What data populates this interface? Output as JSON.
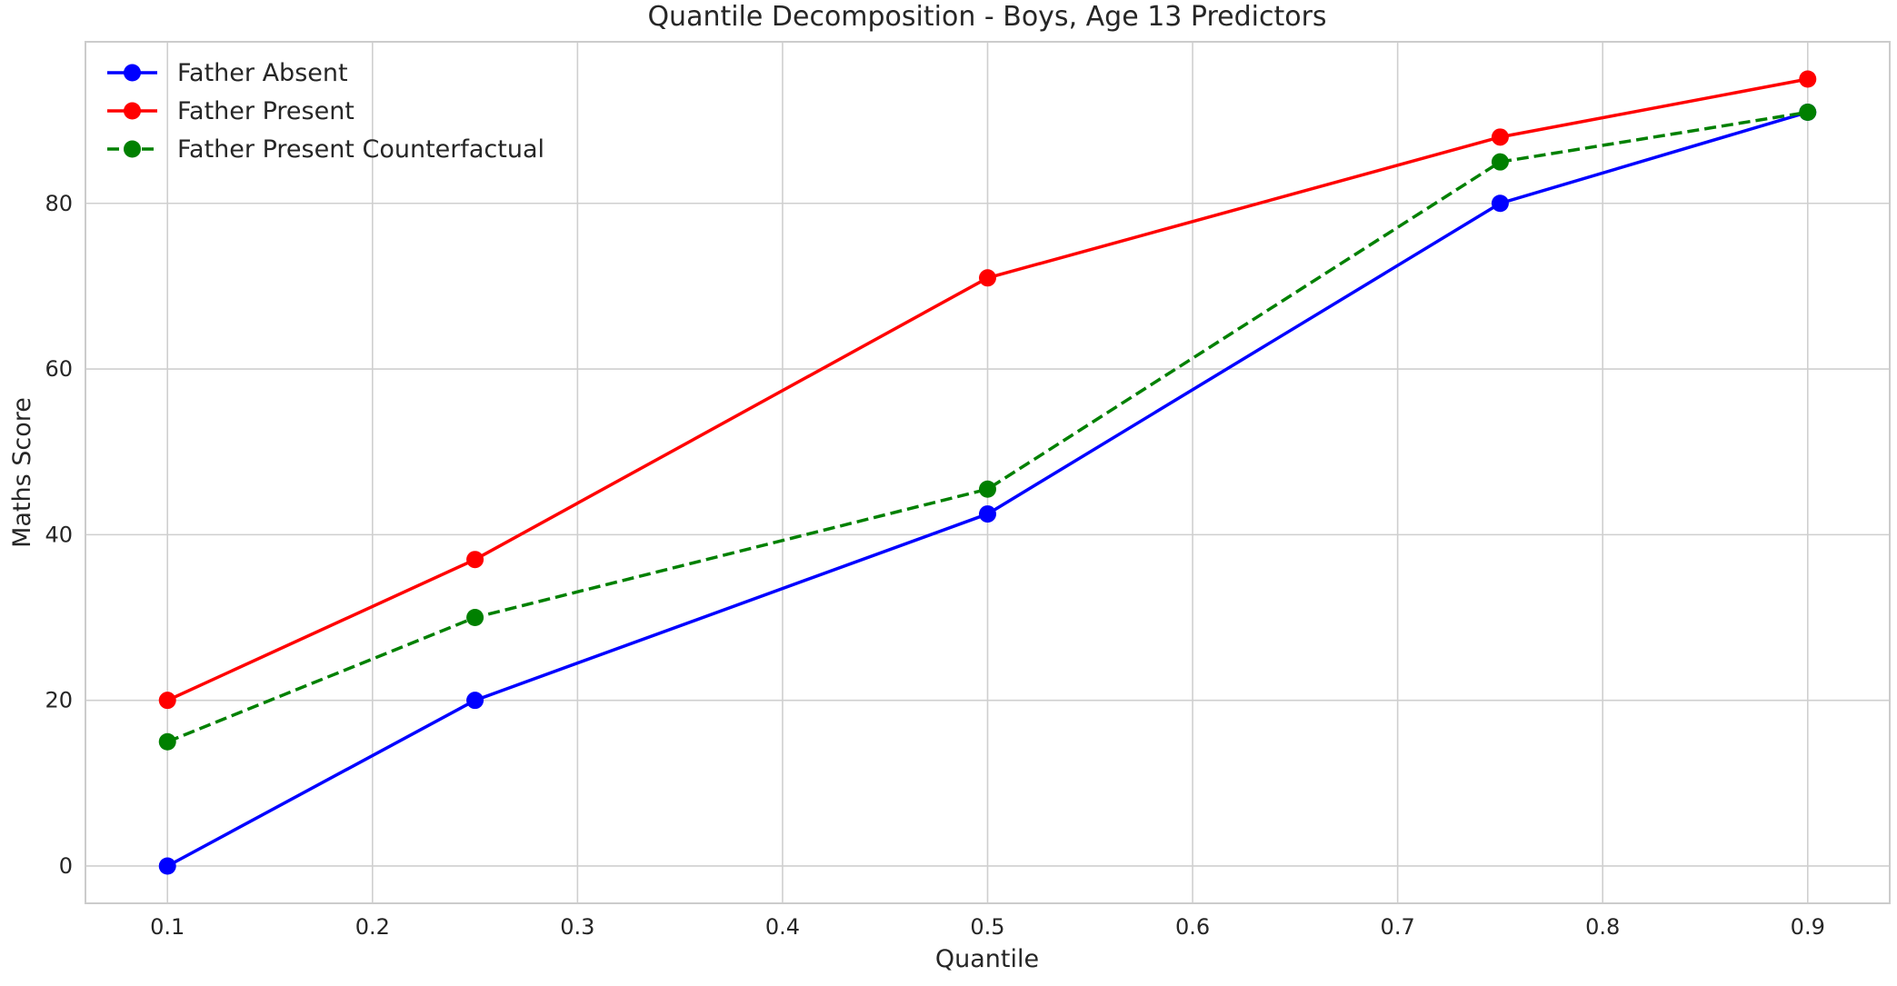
{
  "chart_data": {
    "type": "line",
    "title": "Quantile Decomposition - Boys, Age 13 Predictors",
    "xlabel": "Quantile",
    "ylabel": "Maths Score",
    "x": [
      0.1,
      0.25,
      0.5,
      0.75,
      0.9
    ],
    "xlim": [
      0.06,
      0.94
    ],
    "ylim": [
      -4.5,
      99.5
    ],
    "xticks": [
      0.1,
      0.2,
      0.3,
      0.4,
      0.5,
      0.6,
      0.7,
      0.8,
      0.9
    ],
    "xtick_labels": [
      "0.1",
      "0.2",
      "0.3",
      "0.4",
      "0.5",
      "0.6",
      "0.7",
      "0.8",
      "0.9"
    ],
    "yticks": [
      0,
      20,
      40,
      60,
      80
    ],
    "ytick_labels": [
      "0",
      "20",
      "40",
      "60",
      "80"
    ],
    "grid": true,
    "legend_position": "top-left",
    "series": [
      {
        "name": "Father Absent",
        "values": [
          0,
          20,
          42.5,
          80,
          91
        ],
        "color": "#0000ff",
        "linestyle": "solid",
        "marker": "circle"
      },
      {
        "name": "Father Present",
        "values": [
          20,
          37,
          71,
          88,
          95
        ],
        "color": "#ff0000",
        "linestyle": "solid",
        "marker": "circle"
      },
      {
        "name": "Father Present Counterfactual",
        "values": [
          15,
          30,
          45.5,
          85,
          91
        ],
        "color": "#008000",
        "linestyle": "dashed",
        "marker": "circle"
      }
    ]
  }
}
